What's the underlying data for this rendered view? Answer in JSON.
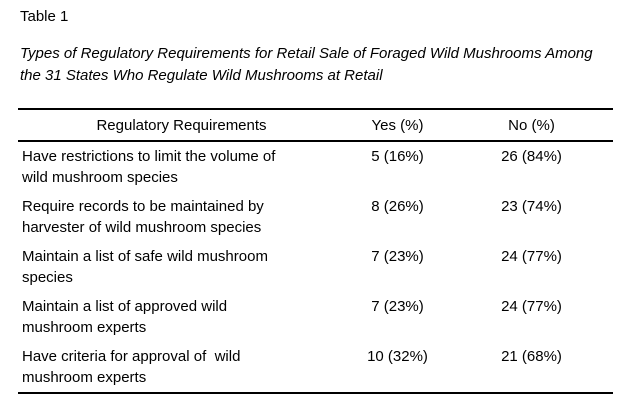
{
  "page": {
    "table_label": "Table 1",
    "caption": "Types of Regulatory Requirements for Retail Sale of Foraged Wild Mushrooms Among the 31 States Who Regulate Wild Mushrooms at Retail"
  },
  "table": {
    "columns": [
      "Regulatory Requirements",
      "Yes (%)",
      "No (%)"
    ],
    "rows": [
      {
        "requirement": "Have restrictions to limit the volume of\nwild mushroom species",
        "yes": "5 (16%)",
        "no": "26 (84%)"
      },
      {
        "requirement": "Require records to be maintained by\nharvester of wild mushroom species",
        "yes": "8 (26%)",
        "no": "23 (74%)"
      },
      {
        "requirement": "Maintain a list of safe wild mushroom\nspecies",
        "yes": "7 (23%)",
        "no": "24 (77%)"
      },
      {
        "requirement": "Maintain a list of approved wild\nmushroom experts",
        "yes": "7 (23%)",
        "no": "24 (77%)"
      },
      {
        "requirement": "Have criteria for approval of  wild\nmushroom experts",
        "yes": "10 (32%)",
        "no": "21 (68%)"
      }
    ]
  },
  "colors": {
    "text": "#000000",
    "background": "#ffffff",
    "rule": "#000000"
  }
}
